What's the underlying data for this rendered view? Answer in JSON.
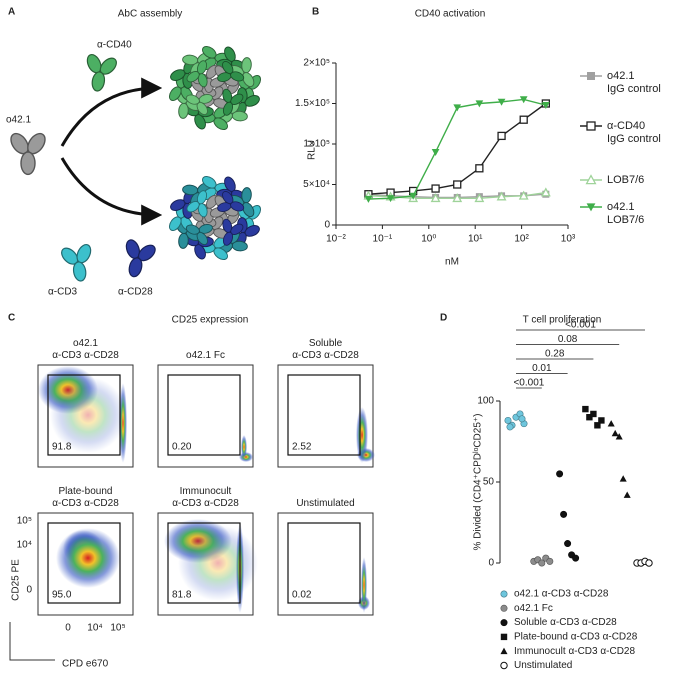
{
  "panel_a": {
    "label": "A",
    "title": "AbC assembly",
    "antibodies": [
      "α-CD40",
      "o42.1",
      "α-CD3",
      "α-CD28"
    ]
  },
  "chart_data": [
    {
      "panel": "B",
      "type": "line",
      "title": "CD40 activation",
      "xlabel": "nM",
      "ylabel": "RLU",
      "xscale": "log",
      "x": [
        0.05,
        0.15,
        0.46,
        1.4,
        4.1,
        12.3,
        37,
        111,
        333
      ],
      "series": [
        {
          "name": "o42.1\nIgG control",
          "color": "#a0a0a0",
          "marker": "square-filled",
          "values": [
            38000,
            36000,
            35000,
            34000,
            34000,
            35000,
            36000,
            36000,
            38000
          ]
        },
        {
          "name": "α-CD40\nIgG control",
          "color": "#222222",
          "marker": "square-open",
          "values": [
            38000,
            40000,
            42000,
            45000,
            50000,
            70000,
            110000,
            130000,
            150000
          ]
        },
        {
          "name": "LOB7/6",
          "color": "#9fd39a",
          "marker": "triangle-open",
          "values": [
            36000,
            35000,
            33000,
            33000,
            33000,
            33000,
            35000,
            36000,
            40000
          ]
        },
        {
          "name": "o42.1\nLOB7/6",
          "color": "#3fae49",
          "marker": "triangle-down-filled",
          "values": [
            32000,
            33000,
            36000,
            90000,
            145000,
            150000,
            152000,
            155000,
            148000
          ]
        }
      ],
      "xlim": [
        0.01,
        1000
      ],
      "xticks": [
        {
          "value": 0.01,
          "label": "10⁻²"
        },
        {
          "value": 0.1,
          "label": "10⁻¹"
        },
        {
          "value": 1,
          "label": "10⁰"
        },
        {
          "value": 10,
          "label": "10¹"
        },
        {
          "value": 100,
          "label": "10²"
        },
        {
          "value": 1000,
          "label": "10³"
        }
      ],
      "ylim": [
        0,
        200000
      ],
      "yticks": [
        0,
        {
          "value": 50000,
          "label": "5×10⁴"
        },
        {
          "value": 100000,
          "label": "1×10⁵"
        },
        {
          "value": 150000,
          "label": "1.5×10⁵"
        },
        {
          "value": 200000,
          "label": "2×10⁵"
        }
      ]
    },
    {
      "panel": "D",
      "type": "dot",
      "title": "T cell proliferation",
      "ylabel": "% Divided (CD4⁺CPDˡᵒCD25⁺)",
      "groups": [
        {
          "name": "o42.1 α-CD3 α-CD28",
          "color": "#6ec6dd",
          "marker": "circle-filled",
          "values": [
            88,
            85,
            90,
            92,
            86,
            84,
            89
          ]
        },
        {
          "name": "o42.1 Fc",
          "color": "#8c8c8c",
          "marker": "circle-filled",
          "values": [
            1,
            2,
            0,
            3,
            1
          ]
        },
        {
          "name": "Soluble α-CD3 α-CD28",
          "color": "#111111",
          "marker": "circle-filled",
          "values": [
            55,
            30,
            12,
            5,
            3
          ]
        },
        {
          "name": "Plate-bound α-CD3 α-CD28",
          "color": "#111111",
          "marker": "square-filled",
          "values": [
            95,
            90,
            92,
            85,
            88
          ]
        },
        {
          "name": "Immunocult α-CD3 α-CD28",
          "color": "#111111",
          "marker": "triangle-filled",
          "values": [
            86,
            80,
            78,
            52,
            42
          ]
        },
        {
          "name": "Unstimulated",
          "color": "#111111",
          "marker": "circle-open",
          "values": [
            0,
            0,
            1,
            0
          ]
        }
      ],
      "p_values": [
        "<0.001",
        "0.01",
        "0.28",
        "0.08",
        "<0.001"
      ],
      "ylim": [
        0,
        100
      ],
      "yticks": [
        0,
        50,
        100
      ]
    }
  ],
  "panel_c": {
    "label": "C",
    "title": "CD25 expression",
    "ylabel": "CD25 PE",
    "xlabel": "CPD e670",
    "yticks": [
      "10⁵",
      "10⁴",
      "0"
    ],
    "xticks": [
      "0",
      "10⁴",
      "10⁵"
    ],
    "plots": [
      {
        "name": "o42.1\nα-CD3 α-CD28",
        "gate": "91.8"
      },
      {
        "name": "o42.1 Fc",
        "gate": "0.20"
      },
      {
        "name": "Soluble\nα-CD3 α-CD28",
        "gate": "2.52"
      },
      {
        "name": "Plate-bound\nα-CD3 α-CD28",
        "gate": "95.0"
      },
      {
        "name": "Immunocult\nα-CD3 α-CD28",
        "gate": "81.8"
      },
      {
        "name": "Unstimulated",
        "gate": "0.02"
      }
    ]
  }
}
